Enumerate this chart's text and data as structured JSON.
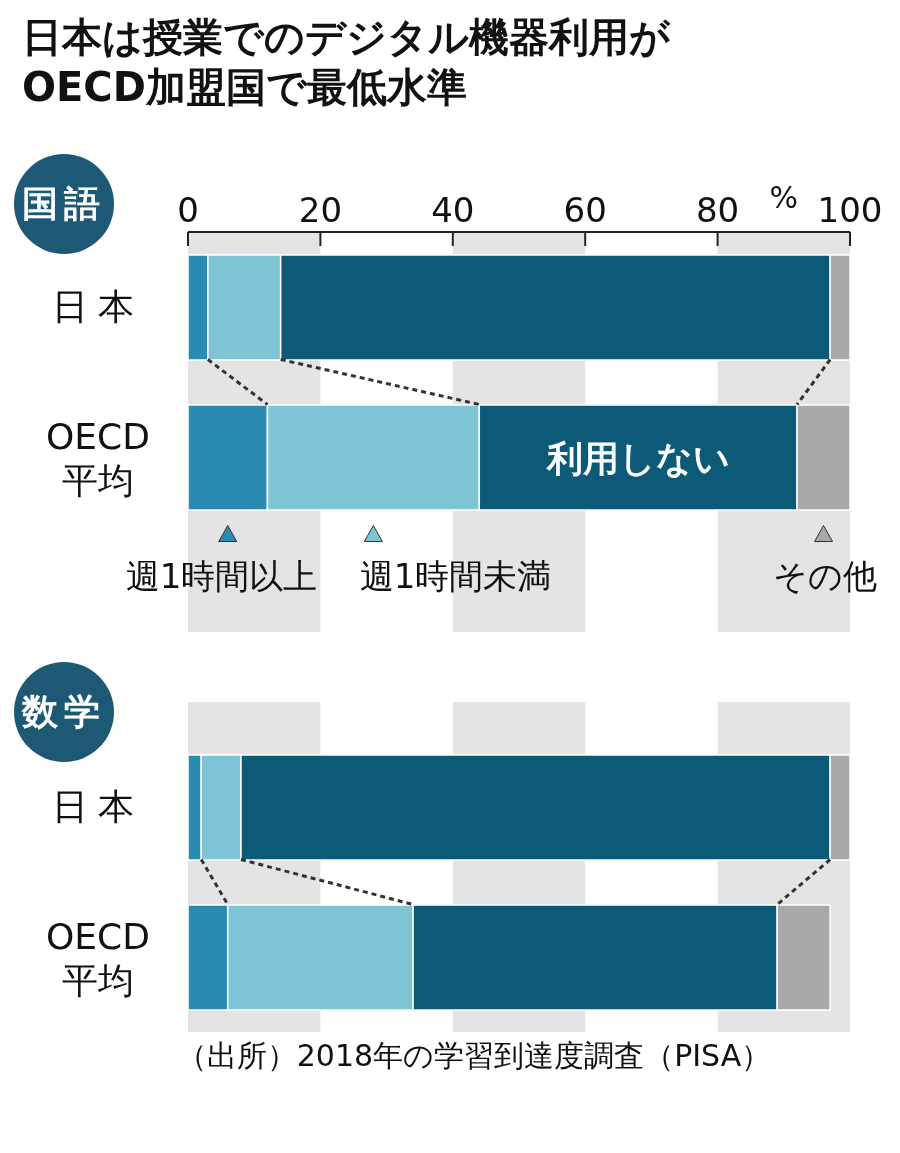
{
  "chart_data": [
    {
      "type": "bar",
      "orientation": "horizontal",
      "stacked": true,
      "title": "日本は授業でのデジタル機器利用が\nOECD加盟国で最低水準",
      "subtitle": "国語",
      "xlabel": "%",
      "categories": [
        "日本",
        "OECD\n平均"
      ],
      "xlim": [
        0,
        100
      ],
      "xticks": [
        0,
        20,
        40,
        60,
        80,
        100
      ],
      "legend": "bottom",
      "grid": false,
      "bands": [
        {
          "axis": "x",
          "from": 0,
          "to": 20,
          "color": "#e4e4e4"
        },
        {
          "axis": "x",
          "from": 40,
          "to": 60,
          "color": "#e4e4e4"
        },
        {
          "axis": "x",
          "from": 80,
          "to": 100,
          "color": "#e4e4e4"
        }
      ],
      "series": [
        {
          "name": "週1時間以上",
          "color": "#2a8bb0",
          "values": [
            3,
            12
          ]
        },
        {
          "name": "週1時間未満",
          "color": "#7fc4d4",
          "values": [
            11,
            32
          ]
        },
        {
          "name": "利用しない",
          "color": "#0c5a78",
          "values": [
            83,
            48
          ]
        },
        {
          "name": "その他",
          "color": "#a9a9a9",
          "values": [
            3,
            8
          ]
        }
      ]
    },
    {
      "type": "bar",
      "orientation": "horizontal",
      "stacked": true,
      "subtitle": "数学",
      "categories": [
        "日本",
        "OECD\n平均"
      ],
      "xlim": [
        0,
        100
      ],
      "tick_labels": "y",
      "grid": false,
      "bands": [
        {
          "axis": "x",
          "from": 0,
          "to": 20,
          "color": "#e4e4e4"
        },
        {
          "axis": "x",
          "from": 40,
          "to": 60,
          "color": "#e4e4e4"
        },
        {
          "axis": "x",
          "from": 80,
          "to": 100,
          "color": "#e4e4e4"
        }
      ],
      "annotations": [
        "（出所）2018年の学習到達度調査（PISA）"
      ],
      "series": [
        {
          "color": "#2a8bb0",
          "values": [
            2,
            6
          ]
        },
        {
          "color": "#7fc4d4",
          "values": [
            6,
            28
          ]
        },
        {
          "color": "#0c5a78",
          "values": [
            89,
            55
          ]
        },
        {
          "color": "#a9a9a9",
          "values": [
            3,
            8
          ]
        }
      ]
    }
  ]
}
